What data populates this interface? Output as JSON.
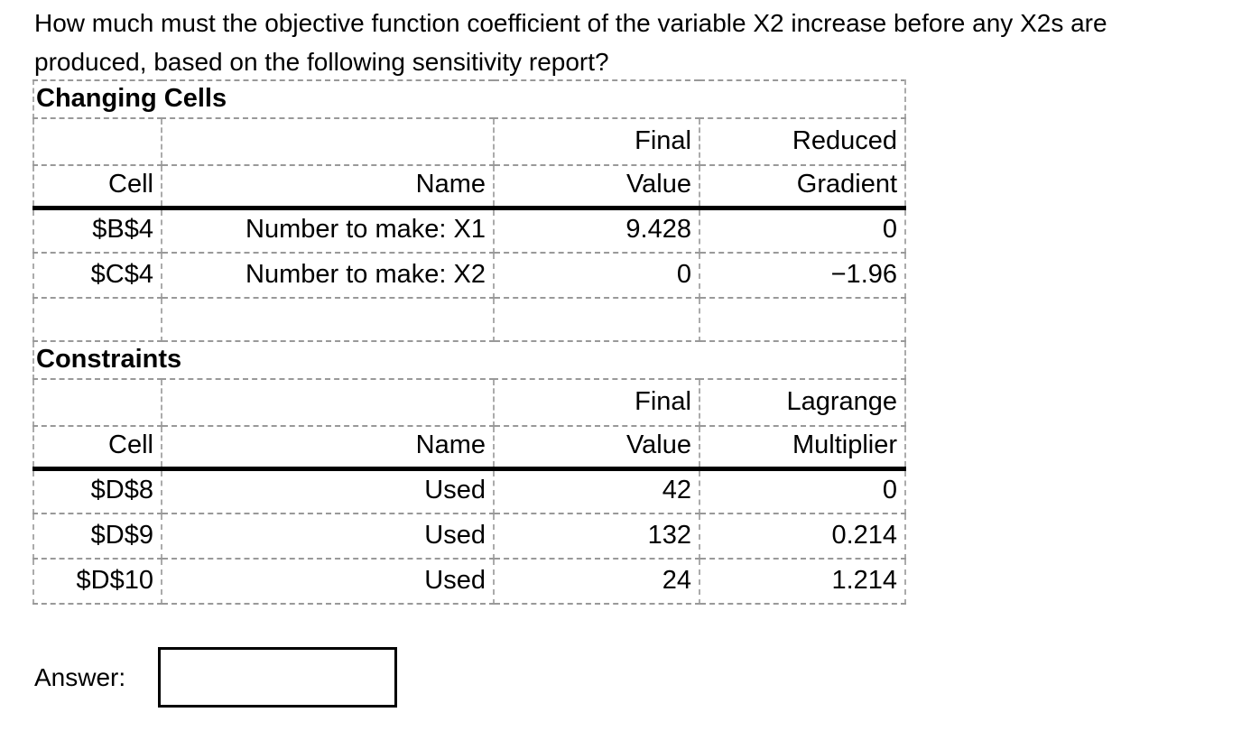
{
  "page": {
    "background": "#ffffff",
    "text_color": "#000000",
    "grid_dash_color": "#9a9a9a",
    "header_rule_color": "#000000"
  },
  "question": {
    "full_text": "How much must the objective function coefficient of the variable X2 increase before any X2s are produced, based on the following sensitivity report?",
    "lines": [
      "How much must the objective function coefficient of the variable X2 increase before any X2s are",
      "produced, based on the following sensitivity report?"
    ]
  },
  "report": {
    "changing_cells": {
      "title": "Changing Cells",
      "columns_top": [
        "",
        "",
        "Final",
        "Reduced"
      ],
      "columns_bottom": [
        "Cell",
        "Name",
        "Value",
        "Gradient"
      ],
      "rows": [
        {
          "cell": "$B$4",
          "name": "Number to make: X1",
          "final_value": "9.428",
          "reduced_gradient": "0"
        },
        {
          "cell": "$C$4",
          "name": "Number to make: X2",
          "final_value": "0",
          "reduced_gradient": "−1.96"
        }
      ]
    },
    "constraints": {
      "title": "Constraints",
      "columns_top": [
        "",
        "",
        "Final",
        "Lagrange"
      ],
      "columns_bottom": [
        "Cell",
        "Name",
        "Value",
        "Multiplier"
      ],
      "rows": [
        {
          "cell": "$D$8",
          "name": "Used",
          "final_value": "42",
          "lagrange_multiplier": "0"
        },
        {
          "cell": "$D$9",
          "name": "Used",
          "final_value": "132",
          "lagrange_multiplier": "0.214"
        },
        {
          "cell": "$D$10",
          "name": "Used",
          "final_value": "24",
          "lagrange_multiplier": "1.214"
        }
      ]
    }
  },
  "answer": {
    "label": "Answer:",
    "value": ""
  }
}
